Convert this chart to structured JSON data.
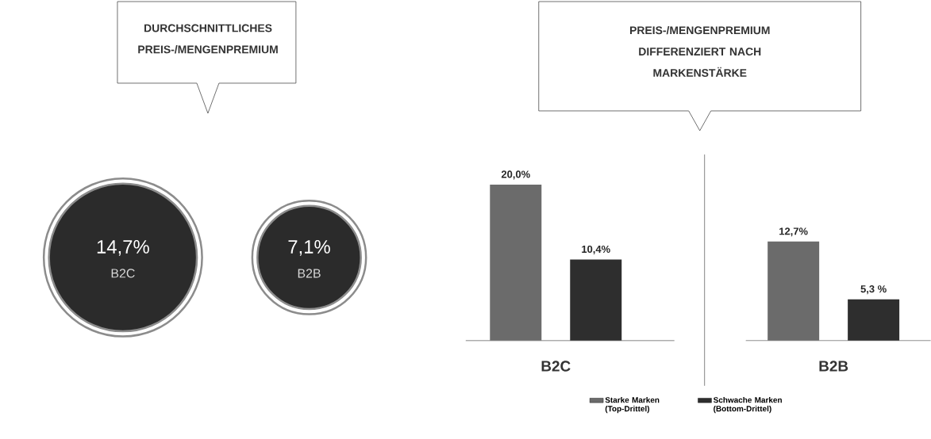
{
  "chart_data": [
    {
      "type": "other",
      "title": "DURCHSCHNITTLICHES PREIS-/MENGENPREMIUM",
      "categories": [
        "B2C",
        "B2B"
      ],
      "values": [
        14.7,
        7.1
      ],
      "value_labels": [
        "14,7%",
        "7,1%"
      ],
      "colors": [
        "#2b2b2b",
        "#2b2b2b"
      ]
    },
    {
      "type": "bar",
      "title": "PREIS-/MENGENPREMIUM DIFFERENZIERT NACH MARKENSTÄRKE",
      "categories": [
        "B2C",
        "B2B"
      ],
      "legend": "bottom",
      "series": [
        {
          "name": "Starke Marken (Top-Drittel)",
          "color": "#6b6b6b",
          "values": [
            20.0,
            12.7
          ],
          "value_labels": [
            "20,0%",
            "12,7%"
          ]
        },
        {
          "name": "Schwache Marken (Bottom-Drittel)",
          "color": "#2e2e2e",
          "values": [
            10.4,
            5.3
          ],
          "value_labels": [
            "10,4%",
            "5,3 %"
          ]
        }
      ]
    }
  ]
}
